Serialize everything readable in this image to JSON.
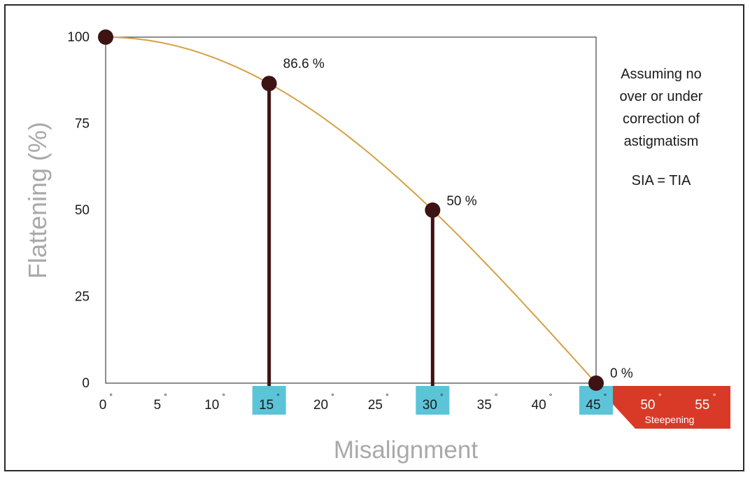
{
  "chart_data": {
    "type": "line",
    "title": "",
    "xlabel": "Misalignment",
    "ylabel": "Flattening (%)",
    "xlim": [
      0,
      45
    ],
    "ylim": [
      0,
      100
    ],
    "grid": false,
    "x_ticks": [
      "0",
      "5",
      "10",
      "15",
      "20",
      "25",
      "30",
      "35",
      "40",
      "45"
    ],
    "x_ticks_highlighted": [
      "15",
      "30",
      "45"
    ],
    "x_ticks_beyond": [
      "50",
      "55"
    ],
    "y_ticks": [
      "0",
      "25",
      "50",
      "75",
      "100"
    ],
    "series": [
      {
        "x": [
          0,
          5,
          10,
          15,
          20,
          25,
          30,
          35,
          40,
          45
        ],
        "y": [
          100,
          98.5,
          94,
          86.6,
          76.6,
          64.3,
          50,
          34.2,
          17.4,
          0
        ]
      }
    ],
    "markers": [
      {
        "x": 0,
        "y": 100,
        "label": ""
      },
      {
        "x": 15,
        "y": 86.6,
        "label": "86.6 %"
      },
      {
        "x": 30,
        "y": 50,
        "label": "50 %"
      },
      {
        "x": 45,
        "y": 0,
        "label": "0 %"
      }
    ],
    "steepening_label": "Steepening",
    "note_lines": [
      "Assuming no",
      "over or under",
      "correction of",
      "astigmatism"
    ],
    "note_equation": "SIA = TIA",
    "degree_symbol": "°",
    "colors": {
      "curve": "#d6a046",
      "marker": "#3d1313",
      "drop_line": "#3d1313",
      "tick_highlight": "#5cc4d8",
      "steepening": "#d83a27"
    }
  }
}
